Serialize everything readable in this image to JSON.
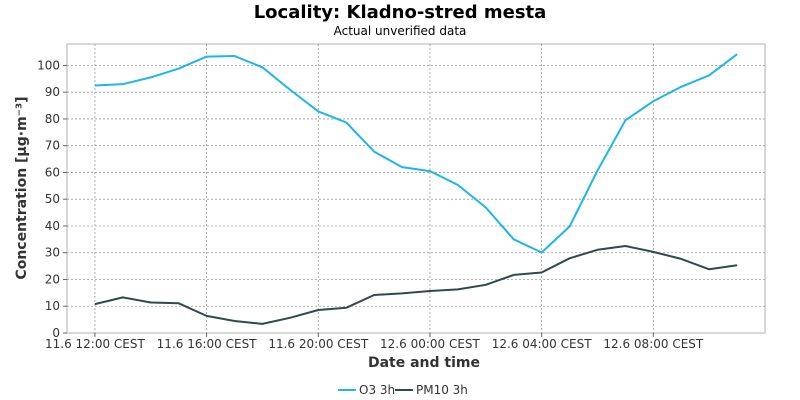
{
  "chart_data": {
    "type": "line",
    "title": "Locality: Kladno-stred mesta",
    "subtitle": "Actual unverified data",
    "xlabel": "Date and time",
    "ylabel": "Concentration [µg·m⁻³]",
    "ylim": [
      0,
      108
    ],
    "yticks": [
      0,
      10,
      20,
      30,
      40,
      50,
      60,
      70,
      80,
      90,
      100
    ],
    "x_hours": [
      0,
      2,
      4,
      6,
      8,
      10,
      12,
      14,
      16,
      18,
      20,
      22,
      24,
      26,
      28,
      30,
      32,
      34,
      36,
      38,
      40,
      42,
      44,
      46
    ],
    "xticks": [
      {
        "hour": 0,
        "label": "11.6 12:00 CEST"
      },
      {
        "hour": 8,
        "label": "11.6 16:00 CEST"
      },
      {
        "hour": 16,
        "label": "11.6 20:00 CEST"
      },
      {
        "hour": 24,
        "label": "12.6 00:00 CEST"
      },
      {
        "hour": 32,
        "label": "12.6 04:00 CEST"
      },
      {
        "hour": 40,
        "label": "12.6 08:00 CEST"
      }
    ],
    "xlim": [
      -2,
      48
    ],
    "grid": true,
    "legend_position": "bottom",
    "series": [
      {
        "name": "O3 3h",
        "color": "#1fb5ea",
        "values": [
          92.5,
          93,
          95.5,
          98.8,
          103.3,
          103.5,
          99.3,
          90.8,
          82.8,
          78.7,
          67.8,
          62,
          60.5,
          55.3,
          46.9,
          35,
          30.1,
          39.8,
          60.7,
          79.5,
          86.6,
          92,
          96.3,
          104.2
        ]
      },
      {
        "name": "PM10 3h",
        "color": "#2e4b4b",
        "values": [
          10.8,
          13.3,
          11.4,
          11.1,
          6.4,
          4.5,
          3.4,
          5.7,
          8.6,
          9.4,
          14.2,
          14.8,
          15.7,
          16.3,
          18,
          21.7,
          22.6,
          27.9,
          31.1,
          32.5,
          30.3,
          27.7,
          23.8,
          25.3
        ]
      }
    ]
  }
}
